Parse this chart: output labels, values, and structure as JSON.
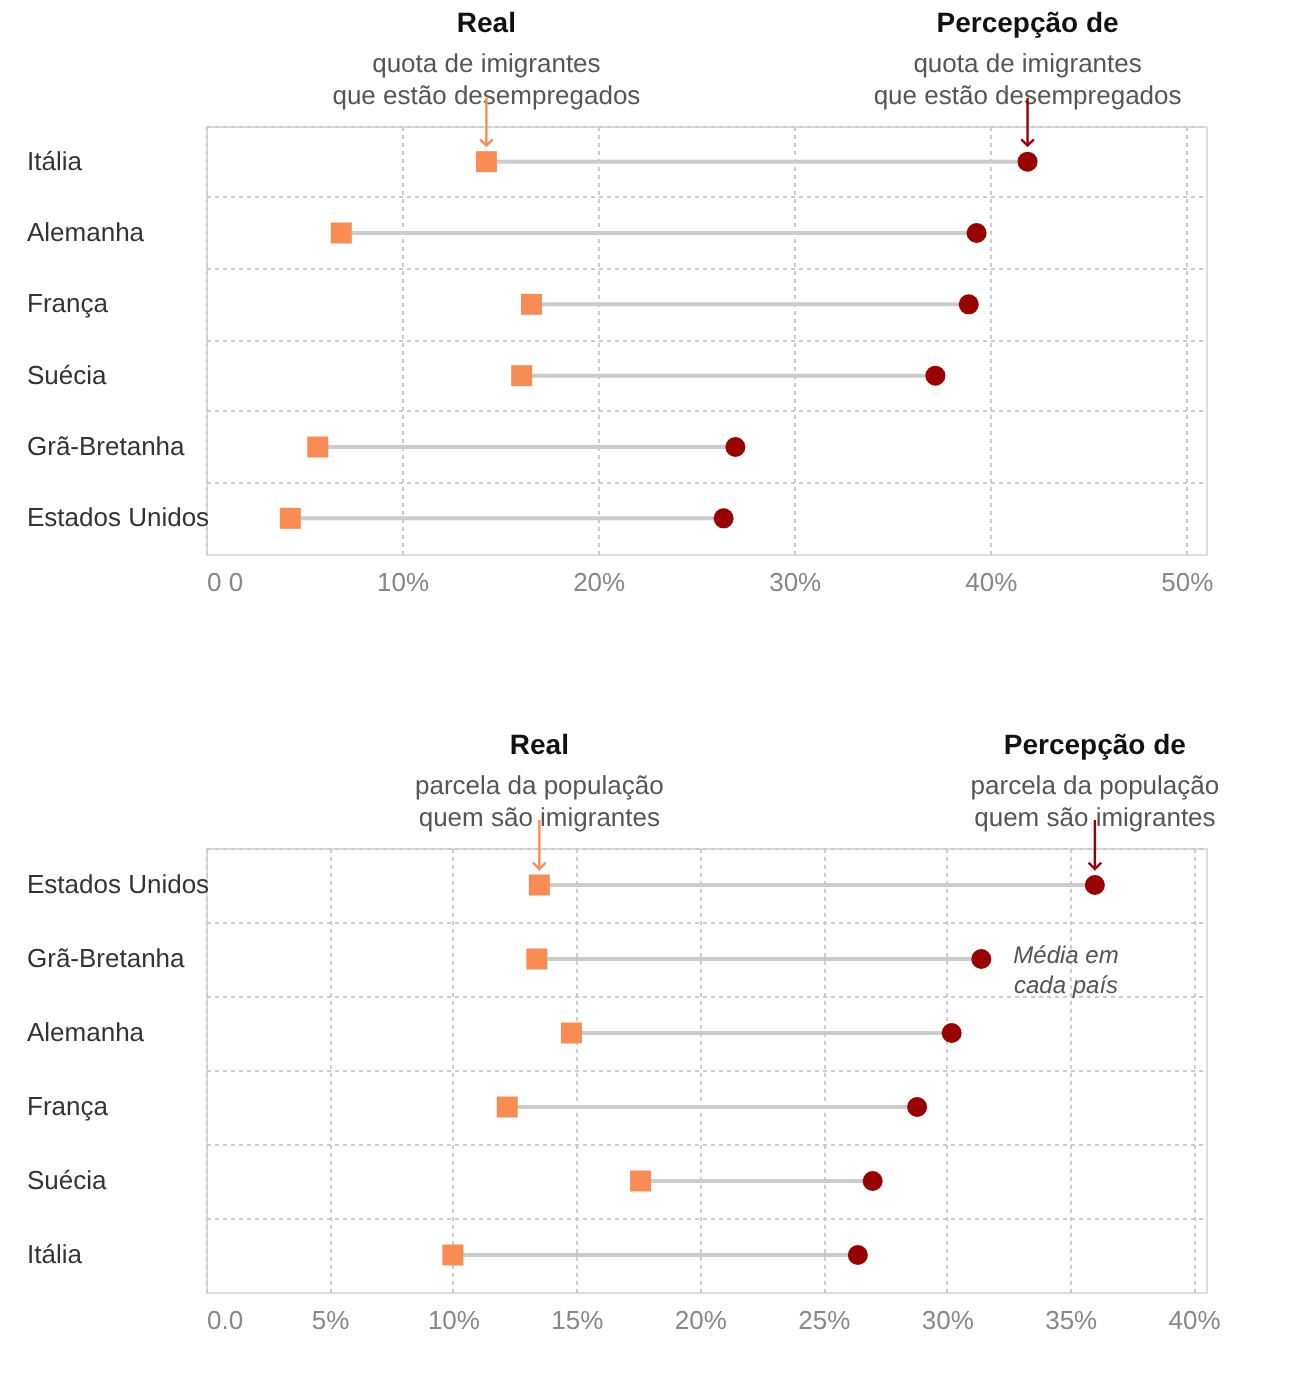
{
  "chart_data": [
    {
      "type": "scatter",
      "orientation": "horizontal",
      "grid": true,
      "categories": [
        "Itália",
        "Alemanha",
        "França",
        "Suécia",
        "Grã-Bretanha",
        "Estados Unidos"
      ],
      "series": [
        {
          "color": "#f98b55",
          "marker": "square",
          "values": [
            14.3,
            6.9,
            16.6,
            16.1,
            5.7,
            4.3
          ]
        },
        {
          "color": "#990000",
          "marker": "circle",
          "values": [
            41.9,
            39.3,
            38.9,
            37.2,
            27.0,
            26.4
          ]
        }
      ],
      "xlim": [
        0,
        51
      ],
      "xticks": [
        {
          "value": 0,
          "label": "0 0"
        },
        {
          "value": 10,
          "label": "10%"
        },
        {
          "value": 20,
          "label": "20%"
        },
        {
          "value": 30,
          "label": "30%"
        },
        {
          "value": 40,
          "label": "40%"
        },
        {
          "value": 50,
          "label": "50%"
        }
      ],
      "annotations": [
        {
          "text": "Real\nquota de imigrantes\nque estão desempregados",
          "x": 14.3,
          "y": "Itália"
        },
        {
          "text": "Percepção de\nquota de imigrantes\nque estão desempregados",
          "x": 41.9,
          "y": "Itália"
        }
      ]
    },
    {
      "type": "scatter",
      "orientation": "horizontal",
      "grid": true,
      "categories": [
        "Estados Unidos",
        "Grã-Bretanha",
        "Alemanha",
        "França",
        "Suécia",
        "Itália"
      ],
      "series": [
        {
          "color": "#f98b55",
          "marker": "square",
          "values": [
            13.5,
            13.4,
            14.8,
            12.2,
            17.6,
            10.0
          ]
        },
        {
          "color": "#990000",
          "marker": "circle",
          "values": [
            36.0,
            31.4,
            30.2,
            28.8,
            27.0,
            26.4
          ]
        }
      ],
      "xlim": [
        0,
        40.5
      ],
      "xticks": [
        {
          "value": 0,
          "label": "0.0"
        },
        {
          "value": 5,
          "label": "5%"
        },
        {
          "value": 10,
          "label": "10%"
        },
        {
          "value": 15,
          "label": "15%"
        },
        {
          "value": 20,
          "label": "20%"
        },
        {
          "value": 25,
          "label": "25%"
        },
        {
          "value": 30,
          "label": "30%"
        },
        {
          "value": 35,
          "label": "35%"
        },
        {
          "value": 40,
          "label": "40%"
        }
      ],
      "annotations": [
        {
          "text": "Real\nparcela da população\nquem são imigrantes",
          "x": 13.5,
          "y": "Estados Unidos"
        },
        {
          "text": "Percepção de\nparcela da população\nquem são imigrantes",
          "x": 36.0,
          "y": "Estados Unidos"
        },
        "Média em\ncada país"
      ]
    }
  ]
}
